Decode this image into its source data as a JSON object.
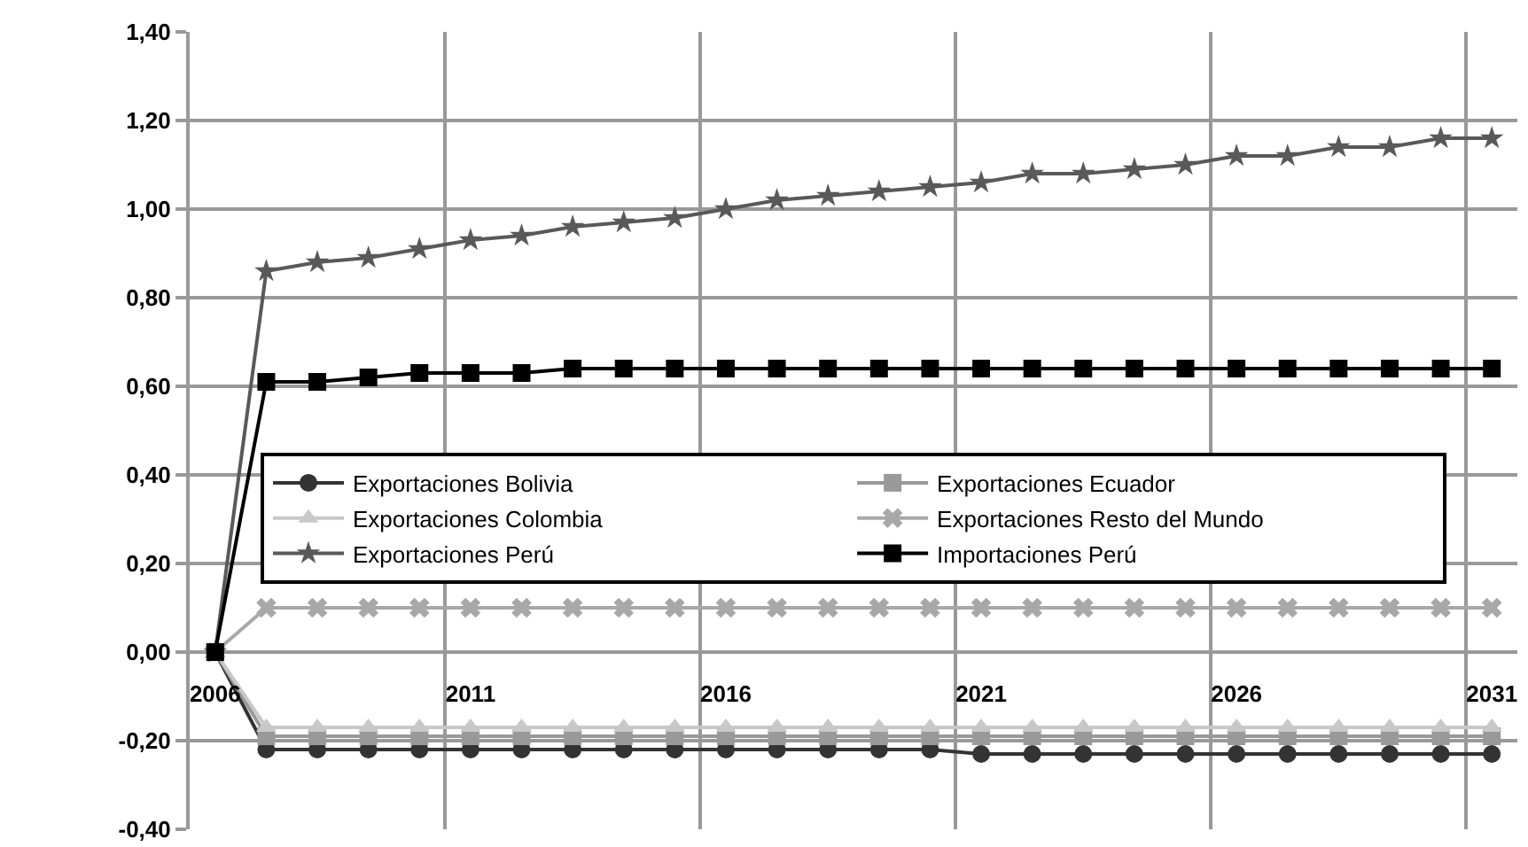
{
  "chart_data": {
    "type": "line",
    "categories": [
      "2006",
      null,
      null,
      null,
      null,
      "2011",
      null,
      null,
      null,
      null,
      "2016",
      null,
      null,
      null,
      null,
      "2021",
      null,
      null,
      null,
      null,
      "2026",
      null,
      null,
      null,
      null,
      "2031"
    ],
    "series": [
      {
        "name": "Exportaciones Bolivia",
        "color": "#333333",
        "marker": "circle",
        "values": [
          0,
          -0.22,
          -0.22,
          -0.22,
          -0.22,
          -0.22,
          -0.22,
          -0.22,
          -0.22,
          -0.22,
          -0.22,
          -0.22,
          -0.22,
          -0.22,
          -0.22,
          -0.23,
          -0.23,
          -0.23,
          -0.23,
          -0.23,
          -0.23,
          -0.23,
          -0.23,
          -0.23,
          -0.23,
          -0.23
        ]
      },
      {
        "name": "Exportaciones Ecuador",
        "color": "#999999",
        "marker": "square",
        "values": [
          0,
          -0.19,
          -0.19,
          -0.19,
          -0.19,
          -0.19,
          -0.19,
          -0.19,
          -0.19,
          -0.19,
          -0.19,
          -0.19,
          -0.19,
          -0.19,
          -0.19,
          -0.19,
          -0.19,
          -0.19,
          -0.19,
          -0.19,
          -0.19,
          -0.19,
          -0.19,
          -0.19,
          -0.19,
          -0.19
        ]
      },
      {
        "name": "Exportaciones Colombia",
        "color": "#c8c8c8",
        "marker": "triangle",
        "values": [
          0,
          -0.17,
          -0.17,
          -0.17,
          -0.17,
          -0.17,
          -0.17,
          -0.17,
          -0.17,
          -0.17,
          -0.17,
          -0.17,
          -0.17,
          -0.17,
          -0.17,
          -0.17,
          -0.17,
          -0.17,
          -0.17,
          -0.17,
          -0.17,
          -0.17,
          -0.17,
          -0.17,
          -0.17,
          -0.17
        ]
      },
      {
        "name": "Exportaciones Resto del Mundo",
        "color": "#a8a8a8",
        "marker": "cross",
        "values": [
          0,
          0.1,
          0.1,
          0.1,
          0.1,
          0.1,
          0.1,
          0.1,
          0.1,
          0.1,
          0.1,
          0.1,
          0.1,
          0.1,
          0.1,
          0.1,
          0.1,
          0.1,
          0.1,
          0.1,
          0.1,
          0.1,
          0.1,
          0.1,
          0.1,
          0.1
        ]
      },
      {
        "name": "Exportaciones Perú",
        "color": "#595959",
        "marker": "star",
        "values": [
          0,
          0.86,
          0.88,
          0.89,
          0.91,
          0.93,
          0.94,
          0.96,
          0.97,
          0.98,
          1.0,
          1.02,
          1.03,
          1.04,
          1.05,
          1.06,
          1.08,
          1.08,
          1.09,
          1.1,
          1.12,
          1.12,
          1.14,
          1.14,
          1.16,
          1.16
        ]
      },
      {
        "name": "Importaciones Perú",
        "color": "#000000",
        "marker": "square",
        "values": [
          0,
          0.61,
          0.61,
          0.62,
          0.63,
          0.63,
          0.63,
          0.64,
          0.64,
          0.64,
          0.64,
          0.64,
          0.64,
          0.64,
          0.64,
          0.64,
          0.64,
          0.64,
          0.64,
          0.64,
          0.64,
          0.64,
          0.64,
          0.64,
          0.64,
          0.64
        ]
      }
    ],
    "ylim": [
      -0.4,
      1.4
    ],
    "yticks": [
      {
        "value": -0.4,
        "label": "-0,40"
      },
      {
        "value": -0.2,
        "label": "-0,20"
      },
      {
        "value": 0,
        "label": "0,00"
      },
      {
        "value": 0.2,
        "label": "0,20"
      },
      {
        "value": 0.4,
        "label": "0,40"
      },
      {
        "value": 0.6,
        "label": "0,60"
      },
      {
        "value": 0.8,
        "label": "0,80"
      },
      {
        "value": 1.0,
        "label": "1,00"
      },
      {
        "value": 1.2,
        "label": "1,20"
      },
      {
        "value": 1.4,
        "label": "1,40"
      }
    ],
    "grid": true,
    "legend": "center",
    "line_style": "solid"
  }
}
